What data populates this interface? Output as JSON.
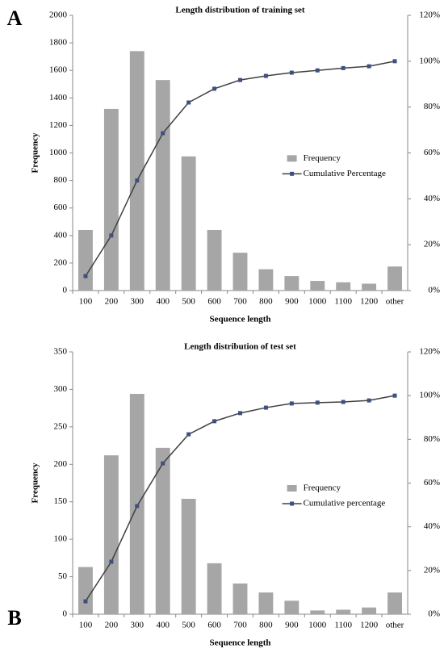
{
  "chart_data": [
    {
      "type": "bar-line",
      "panel_label": "A",
      "title": "Length distribution of training set",
      "x_label": "Sequence length",
      "y_label": "Frequency",
      "categories": [
        "100",
        "200",
        "300",
        "400",
        "500",
        "600",
        "700",
        "800",
        "900",
        "1000",
        "1100",
        "1200",
        "other"
      ],
      "series": [
        {
          "name": "Frequency",
          "type": "bar",
          "color": "#a6a6a6",
          "values": [
            440,
            1320,
            1740,
            1530,
            975,
            440,
            275,
            155,
            105,
            70,
            60,
            50,
            175
          ]
        },
        {
          "name": "Cumulative Percentage",
          "type": "line",
          "axis": "y2",
          "color": "#404040",
          "marker_color": "#3f4f7f",
          "values": [
            6.3,
            24,
            48,
            68.6,
            82,
            88,
            91.8,
            93.6,
            95,
            96,
            97,
            97.8,
            100
          ]
        }
      ],
      "ylim": [
        0,
        2000
      ],
      "yticks": [
        0,
        200,
        400,
        600,
        800,
        1000,
        1200,
        1400,
        1600,
        1800,
        2000
      ],
      "y2lim": [
        0,
        120
      ],
      "y2ticks": [
        {
          "value": 0,
          "label": "0%"
        },
        {
          "value": 20,
          "label": "20%"
        },
        {
          "value": 40,
          "label": "40%"
        },
        {
          "value": 60,
          "label": "60%"
        },
        {
          "value": 80,
          "label": "80%"
        },
        {
          "value": 100,
          "label": "100%"
        },
        {
          "value": 120,
          "label": "120%"
        }
      ],
      "legend": "right",
      "grid": false
    },
    {
      "type": "bar-line",
      "panel_label": "B",
      "title": "Length distribution of test set",
      "x_label": "Sequence length",
      "y_label": "Frequency",
      "categories": [
        "100",
        "200",
        "300",
        "400",
        "500",
        "600",
        "700",
        "800",
        "900",
        "1000",
        "1100",
        "1200",
        "other"
      ],
      "series": [
        {
          "name": "Frequency",
          "type": "bar",
          "color": "#a6a6a6",
          "values": [
            63,
            212,
            294,
            222,
            154,
            68,
            41,
            29,
            18,
            5,
            6,
            9,
            29
          ]
        },
        {
          "name": "Cumulative percentage",
          "type": "line",
          "axis": "y2",
          "color": "#404040",
          "marker_color": "#3f4f7f",
          "values": [
            5.9,
            24,
            49.5,
            69,
            82.3,
            88.3,
            92,
            94.5,
            96.4,
            96.8,
            97.1,
            97.8,
            100
          ]
        }
      ],
      "ylim": [
        0,
        350
      ],
      "yticks": [
        0,
        50,
        100,
        150,
        200,
        250,
        300,
        350
      ],
      "y2lim": [
        0,
        120
      ],
      "y2ticks": [
        {
          "value": 0,
          "label": "0%"
        },
        {
          "value": 20,
          "label": "20%"
        },
        {
          "value": 40,
          "label": "40%"
        },
        {
          "value": 60,
          "label": "60%"
        },
        {
          "value": 80,
          "label": "80%"
        },
        {
          "value": 100,
          "label": "100%"
        },
        {
          "value": 120,
          "label": "120%"
        }
      ],
      "legend": "right",
      "grid": false
    }
  ]
}
